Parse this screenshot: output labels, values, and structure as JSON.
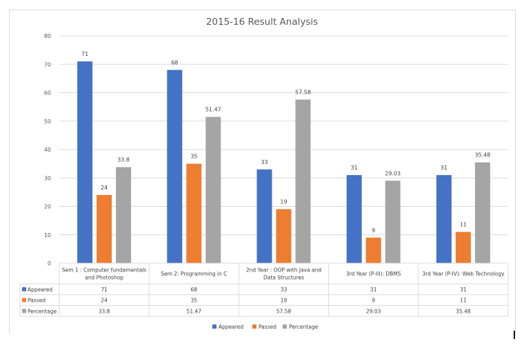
{
  "chart_data": {
    "type": "bar",
    "title": "2015-16 Result Analysis",
    "xlabel": "",
    "ylabel": "",
    "ylim": [
      0,
      80
    ],
    "yticks": [
      "0",
      "10",
      "20",
      "30",
      "40",
      "50",
      "60",
      "70",
      "80"
    ],
    "grid": true,
    "legend_position": "bottom",
    "categories": [
      [
        "Sem 1 : Computer fundamentals",
        "and Photoshop"
      ],
      [
        "Sem 2: Programming  in C"
      ],
      [
        "2nd Year : OOP  with  Java and",
        "Data Structures"
      ],
      [
        "3rd Year (P-III): DBMS"
      ],
      [
        "3rd Year (P-IV): Web Technology"
      ]
    ],
    "series": [
      {
        "name": "Appeared",
        "color": "#4472c4",
        "values": [
          71,
          68,
          33,
          31,
          31
        ],
        "labels": [
          "71",
          "68",
          "33",
          "31",
          "31"
        ]
      },
      {
        "name": "Passed",
        "color": "#ed7d31",
        "values": [
          24,
          35,
          19,
          9,
          11
        ],
        "labels": [
          "24",
          "35",
          "19",
          "9",
          "11"
        ]
      },
      {
        "name": "Percentage",
        "color": "#a5a5a5",
        "values": [
          33.8,
          51.47,
          57.58,
          29.03,
          35.48
        ],
        "labels": [
          "33.8",
          "51.47",
          "57.58",
          "29.03",
          "35.48"
        ]
      }
    ],
    "data_table": true
  }
}
